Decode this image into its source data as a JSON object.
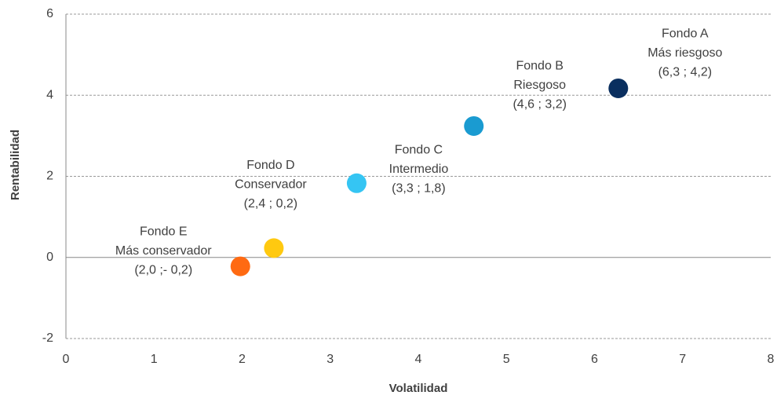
{
  "chart_data": {
    "type": "scatter",
    "x_label": "Volatilidad",
    "y_label": "Rentabilidad",
    "point_names": [
      "Fondo A",
      "Fondo B",
      "Fondo C",
      "Fondo D",
      "Fondo E"
    ],
    "point_notes": [
      "Más riesgoso",
      "Riesgoso",
      "Intermedio",
      "Conservador",
      "Más conservador"
    ],
    "x": [
      6.27,
      4.63,
      3.3,
      2.36,
      1.98
    ],
    "values": [
      4.17,
      3.24,
      1.83,
      0.23,
      -0.22
    ],
    "value_labels": [
      "(6,3 ; 4,2)",
      "(4,6 ; 3,2)",
      "(3,3 ; 1,8)",
      "(2,4 ; 0,2)",
      "(2,0 ;- 0,2)"
    ],
    "colors": [
      "#0a2f5f",
      "#1a9bd1",
      "#35c5f3",
      "#ffc910",
      "#ff6a12"
    ],
    "xlim": [
      0,
      8
    ],
    "xticks": [
      0,
      1,
      2,
      3,
      4,
      5,
      6,
      7,
      8
    ],
    "ylim": [
      -2,
      6
    ],
    "yticks": [
      -2,
      0,
      2,
      4,
      6
    ],
    "grid": true
  }
}
